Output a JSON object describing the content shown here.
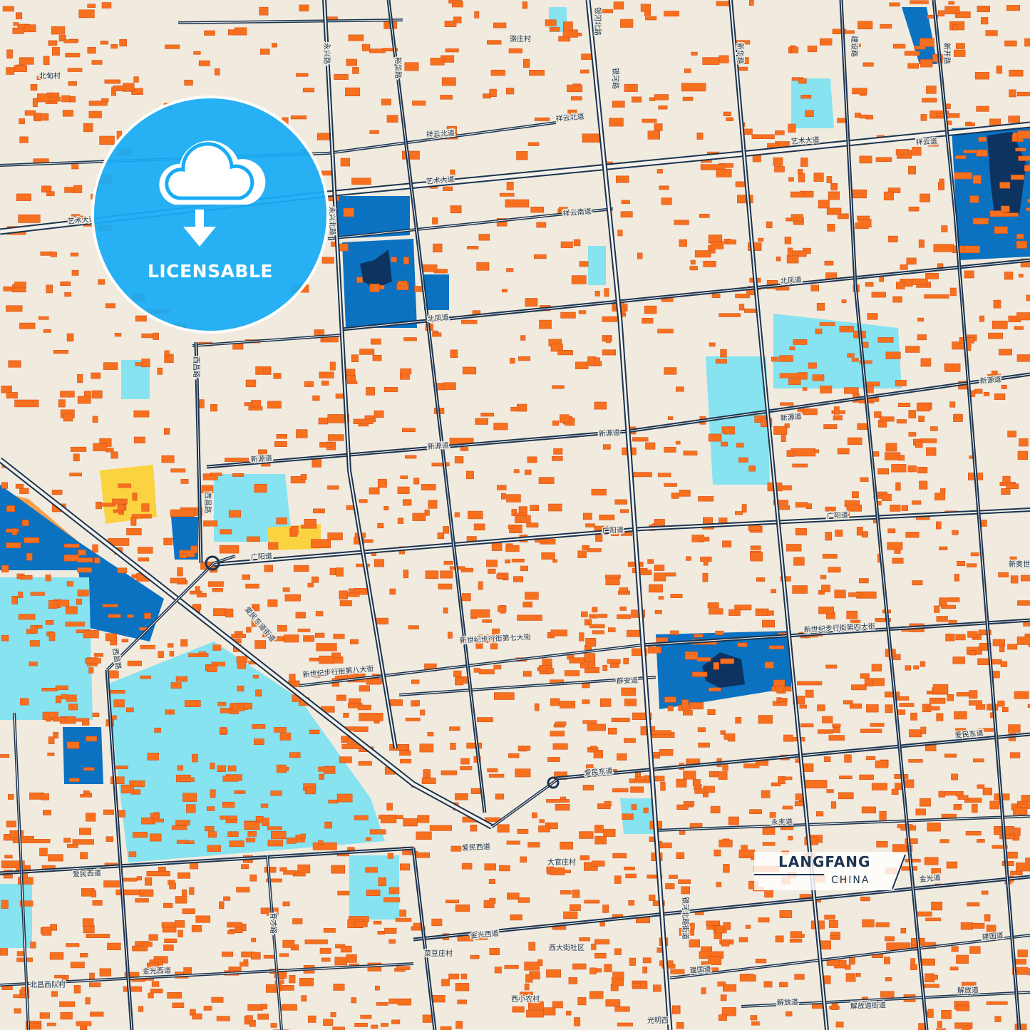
{
  "badge": {
    "label": "LICENSABLE",
    "icon": "cloud-download-icon",
    "color": "#18acf5"
  },
  "title": {
    "city": "LANGFANG",
    "country": "CHINA"
  },
  "colors": {
    "background": "#f1ebdf",
    "building": "#f7701e",
    "road": "#1a3350",
    "water": "#0b72c2",
    "water_dark": "#0d3360",
    "park": "#86e3ef",
    "industrial": "#fbd341",
    "farmland": "#f59f4a"
  },
  "labels": [
    {
      "text": "北甸村"
    },
    {
      "text": "骆庄村"
    },
    {
      "text": "银河北路"
    },
    {
      "text": "银河路"
    },
    {
      "text": "永兴路"
    },
    {
      "text": "裕华路"
    },
    {
      "text": "新华路"
    },
    {
      "text": "建设路"
    },
    {
      "text": "新开路"
    },
    {
      "text": "祥云北道"
    },
    {
      "text": "祥云北道"
    },
    {
      "text": "祥云道"
    },
    {
      "text": "艺术大道"
    },
    {
      "text": "艺术大道"
    },
    {
      "text": "艺术大道"
    },
    {
      "text": "祥云南道"
    },
    {
      "text": "北凤道"
    },
    {
      "text": "北凤道"
    },
    {
      "text": "新源道"
    },
    {
      "text": "新源道"
    },
    {
      "text": "新源道"
    },
    {
      "text": "新源道"
    },
    {
      "text": "新源道"
    },
    {
      "text": "广阳道"
    },
    {
      "text": "广阳道"
    },
    {
      "text": "广阳道"
    },
    {
      "text": "新世纪步行街第四大街"
    },
    {
      "text": "新世纪步行街第七大街"
    },
    {
      "text": "新世纪步行街第八大街"
    },
    {
      "text": "爱民东道街道"
    },
    {
      "text": "爱民东道"
    },
    {
      "text": "爱民东道"
    },
    {
      "text": "爱民西道"
    },
    {
      "text": "爱民西道"
    },
    {
      "text": "群安道"
    },
    {
      "text": "永丰道"
    },
    {
      "text": "大官庄村"
    },
    {
      "text": "金光西道"
    },
    {
      "text": "金光西道"
    },
    {
      "text": "金光道"
    },
    {
      "text": "建国道"
    },
    {
      "text": "建国道"
    },
    {
      "text": "解放道"
    },
    {
      "text": "解放道"
    },
    {
      "text": "解放道街道"
    },
    {
      "text": "西大街社区"
    },
    {
      "text": "菜豆庄村"
    },
    {
      "text": "北昌西队村"
    },
    {
      "text": "西小农村"
    },
    {
      "text": "光明西"
    },
    {
      "text": "西昌路"
    },
    {
      "text": "西昌路"
    },
    {
      "text": "西昌路"
    },
    {
      "text": "育才路"
    },
    {
      "text": "新奥世纪花园"
    },
    {
      "text": "银河北路街道"
    },
    {
      "text": "永兴北路"
    }
  ]
}
